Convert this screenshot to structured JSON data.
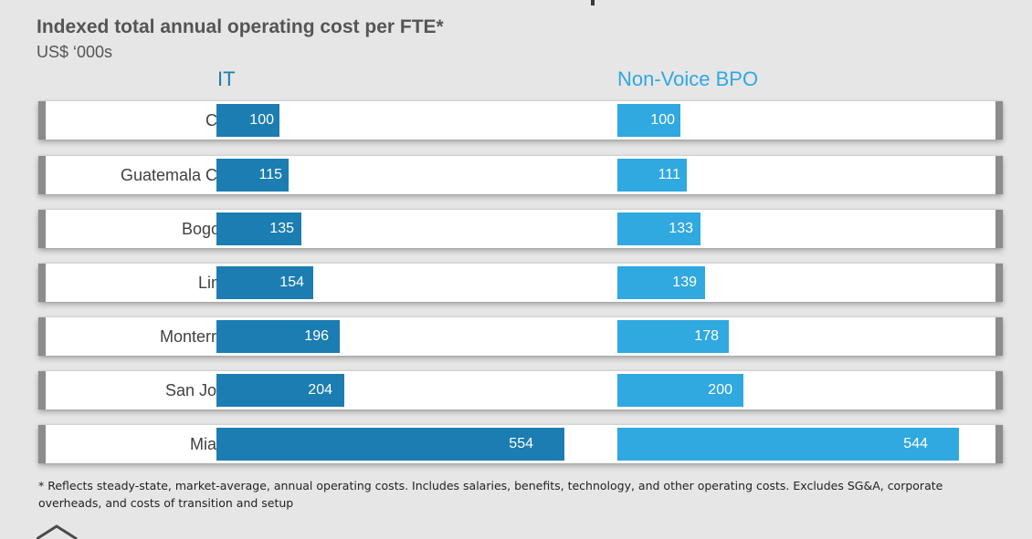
{
  "title": "Indexed total annual operating cost per FTE*",
  "subtitle": "US$ ‘000s",
  "footnote": "* Reflects steady-state, market-average, annual operating costs. Includes salaries, benefits, technology, and other operating costs. Excludes SG&A, corporate overheads, and costs of transition and setup",
  "colors": {
    "it": "#1b7db1",
    "bpo": "#30a8e0",
    "background": "#e6e6e6",
    "row": "#ffffff"
  },
  "chart_data": {
    "type": "bar",
    "orientation": "horizontal",
    "title": "Indexed total annual operating cost per FTE*",
    "subtitle": "US$ ‘000s",
    "categories": [
      "Cali",
      "Guatemala City",
      "Bogota",
      "Lima",
      "Monterrey",
      "San Jose",
      "Miami"
    ],
    "series": [
      {
        "name": "IT",
        "values": [
          100,
          115,
          135,
          154,
          196,
          204,
          554
        ]
      },
      {
        "name": "Non-Voice BPO",
        "values": [
          100,
          111,
          133,
          139,
          178,
          200,
          544
        ]
      }
    ],
    "grid": false,
    "legend": "series headers above columns"
  }
}
